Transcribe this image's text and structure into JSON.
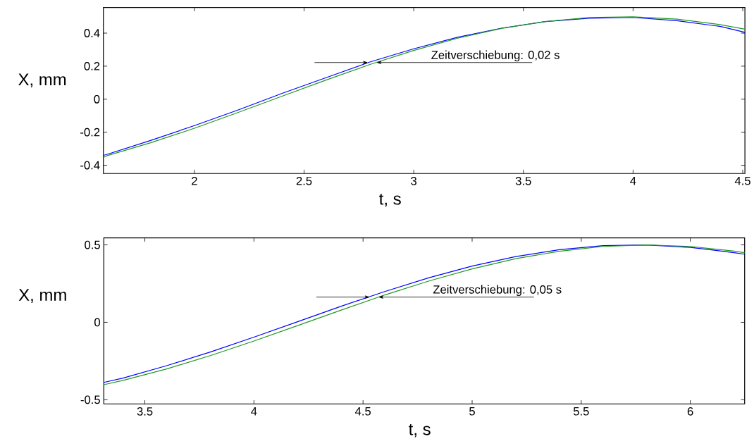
{
  "chart_data": [
    {
      "type": "line",
      "xlabel": "t, s",
      "ylabel": "X, mm",
      "xlim": [
        1.585,
        4.51
      ],
      "ylim": [
        -0.45,
        0.555
      ],
      "xticks": [
        2,
        2.5,
        3,
        3.5,
        4,
        4.5
      ],
      "yticks": [
        -0.4,
        -0.2,
        0,
        0.2,
        0.4
      ],
      "x": [
        1.585,
        1.6,
        1.8,
        2.0,
        2.2,
        2.4,
        2.6,
        2.8,
        3.0,
        3.2,
        3.4,
        3.6,
        3.8,
        4.0,
        4.2,
        4.4,
        4.51
      ],
      "series": [
        {
          "color": "#0000ff",
          "values": [
            -0.34,
            -0.335,
            -0.25,
            -0.16,
            -0.065,
            0.035,
            0.13,
            0.225,
            0.305,
            0.375,
            0.43,
            0.47,
            0.49,
            0.495,
            0.475,
            0.44,
            0.405
          ]
        },
        {
          "color": "#1e9a1e",
          "values": [
            -0.353,
            -0.343,
            -0.264,
            -0.176,
            -0.08,
            0.018,
            0.116,
            0.21,
            0.295,
            0.369,
            0.428,
            0.47,
            0.495,
            0.499,
            0.485,
            0.451,
            0.424
          ]
        }
      ],
      "annotations": [
        {
          "text": "Zeitverschiebung: 0,02 s",
          "x": 2.83,
          "y": 0.222
        }
      ]
    },
    {
      "type": "line",
      "xlabel": "t, s",
      "ylabel": "X, mm",
      "xlim": [
        3.312,
        6.249
      ],
      "ylim": [
        -0.527,
        0.545
      ],
      "xticks": [
        3.5,
        4,
        4.5,
        5,
        5.5,
        6
      ],
      "yticks": [
        -0.5,
        0,
        0.5
      ],
      "x": [
        3.312,
        3.4,
        3.6,
        3.8,
        4.0,
        4.2,
        4.4,
        4.6,
        4.8,
        5.0,
        5.2,
        5.4,
        5.6,
        5.8,
        6.0,
        6.2,
        6.249
      ],
      "series": [
        {
          "color": "#0000ff",
          "values": [
            -0.388,
            -0.36,
            -0.28,
            -0.192,
            -0.096,
            0.004,
            0.104,
            0.199,
            0.287,
            0.363,
            0.425,
            0.469,
            0.495,
            0.5,
            0.484,
            0.45,
            0.44
          ]
        },
        {
          "color": "#1e9a1e",
          "values": [
            -0.403,
            -0.375,
            -0.301,
            -0.215,
            -0.121,
            -0.021,
            0.079,
            0.177,
            0.266,
            0.345,
            0.411,
            0.459,
            0.49,
            0.5,
            0.49,
            0.46,
            0.45
          ]
        }
      ],
      "annotations": [
        {
          "text": "Zeitverschiebung: 0,05 s",
          "x": 4.57,
          "y": 0.163
        }
      ]
    }
  ]
}
